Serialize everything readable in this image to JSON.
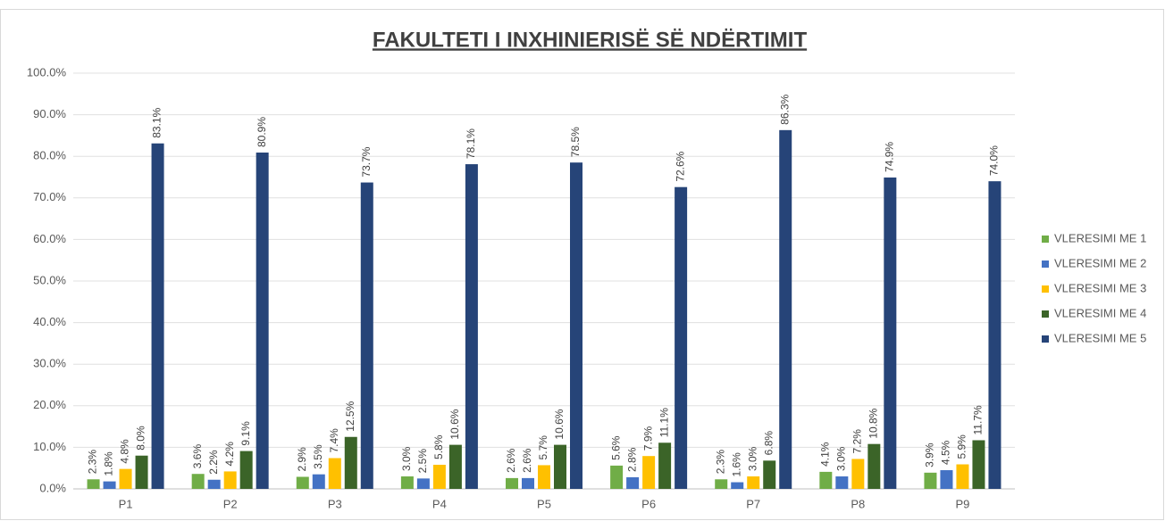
{
  "chart_data": {
    "type": "bar",
    "title": "FAKULTETI I INXHINIERISË SË NDËRTIMIT",
    "categories": [
      "P1",
      "P2",
      "P3",
      "P4",
      "P5",
      "P6",
      "P7",
      "P8",
      "P9"
    ],
    "series": [
      {
        "name": "VLERESIMI ME 1",
        "color": "#70ad47",
        "values": [
          2.3,
          3.6,
          2.9,
          3.0,
          2.6,
          5.6,
          2.3,
          4.1,
          3.9
        ],
        "value_labels": [
          "2.3%",
          "3.6%",
          "2.9%",
          "3.0%",
          "2.6%",
          "5.6%",
          "2.3%",
          "4.1%",
          "3.9%"
        ]
      },
      {
        "name": "VLERESIMI ME 2",
        "color": "#4472c4",
        "values": [
          1.8,
          2.2,
          3.5,
          2.5,
          2.6,
          2.8,
          1.6,
          3.0,
          4.5
        ],
        "value_labels": [
          "1.8%",
          "2.2%",
          "3.5%",
          "2.5%",
          "2.6%",
          "2.8%",
          "1.6%",
          "3.0%",
          "4.5%"
        ]
      },
      {
        "name": "VLERESIMI ME 3",
        "color": "#ffc000",
        "values": [
          4.8,
          4.2,
          7.4,
          5.8,
          5.7,
          7.9,
          3.0,
          7.2,
          5.9
        ],
        "value_labels": [
          "4.8%",
          "4.2%",
          "7.4%",
          "5.8%",
          "5.7%",
          "7.9%",
          "3.0%",
          "7.2%",
          "5.9%"
        ]
      },
      {
        "name": "VLERESIMI ME 4",
        "color": "#3b6428",
        "values": [
          8.0,
          9.1,
          12.5,
          10.6,
          10.6,
          11.1,
          6.8,
          10.8,
          11.7
        ],
        "value_labels": [
          "8.0%",
          "9.1%",
          "12.5%",
          "10.6%",
          "10.6%",
          "11.1%",
          "6.8%",
          "10.8%",
          "11.7%"
        ]
      },
      {
        "name": "VLERESIMI ME 5",
        "color": "#264478",
        "values": [
          83.1,
          80.9,
          73.7,
          78.1,
          78.5,
          72.6,
          86.3,
          74.9,
          74.0
        ],
        "value_labels": [
          "83.1%",
          "80.9%",
          "73.7%",
          "78.1%",
          "78.5%",
          "72.6%",
          "86.3%",
          "74.9%",
          "74.0%"
        ]
      }
    ],
    "ylim": [
      0,
      100
    ],
    "yticks": [
      {
        "value": 0,
        "label": "0.0%"
      },
      {
        "value": 10,
        "label": "10.0%"
      },
      {
        "value": 20,
        "label": "20.0%"
      },
      {
        "value": 30,
        "label": "30.0%"
      },
      {
        "value": 40,
        "label": "40.0%"
      },
      {
        "value": 50,
        "label": "50.0%"
      },
      {
        "value": 60,
        "label": "60.0%"
      },
      {
        "value": 70,
        "label": "70.0%"
      },
      {
        "value": 80,
        "label": "80.0%"
      },
      {
        "value": 90,
        "label": "90.0%"
      },
      {
        "value": 100,
        "label": "100.0%"
      }
    ],
    "grid": true,
    "legend": "right"
  }
}
